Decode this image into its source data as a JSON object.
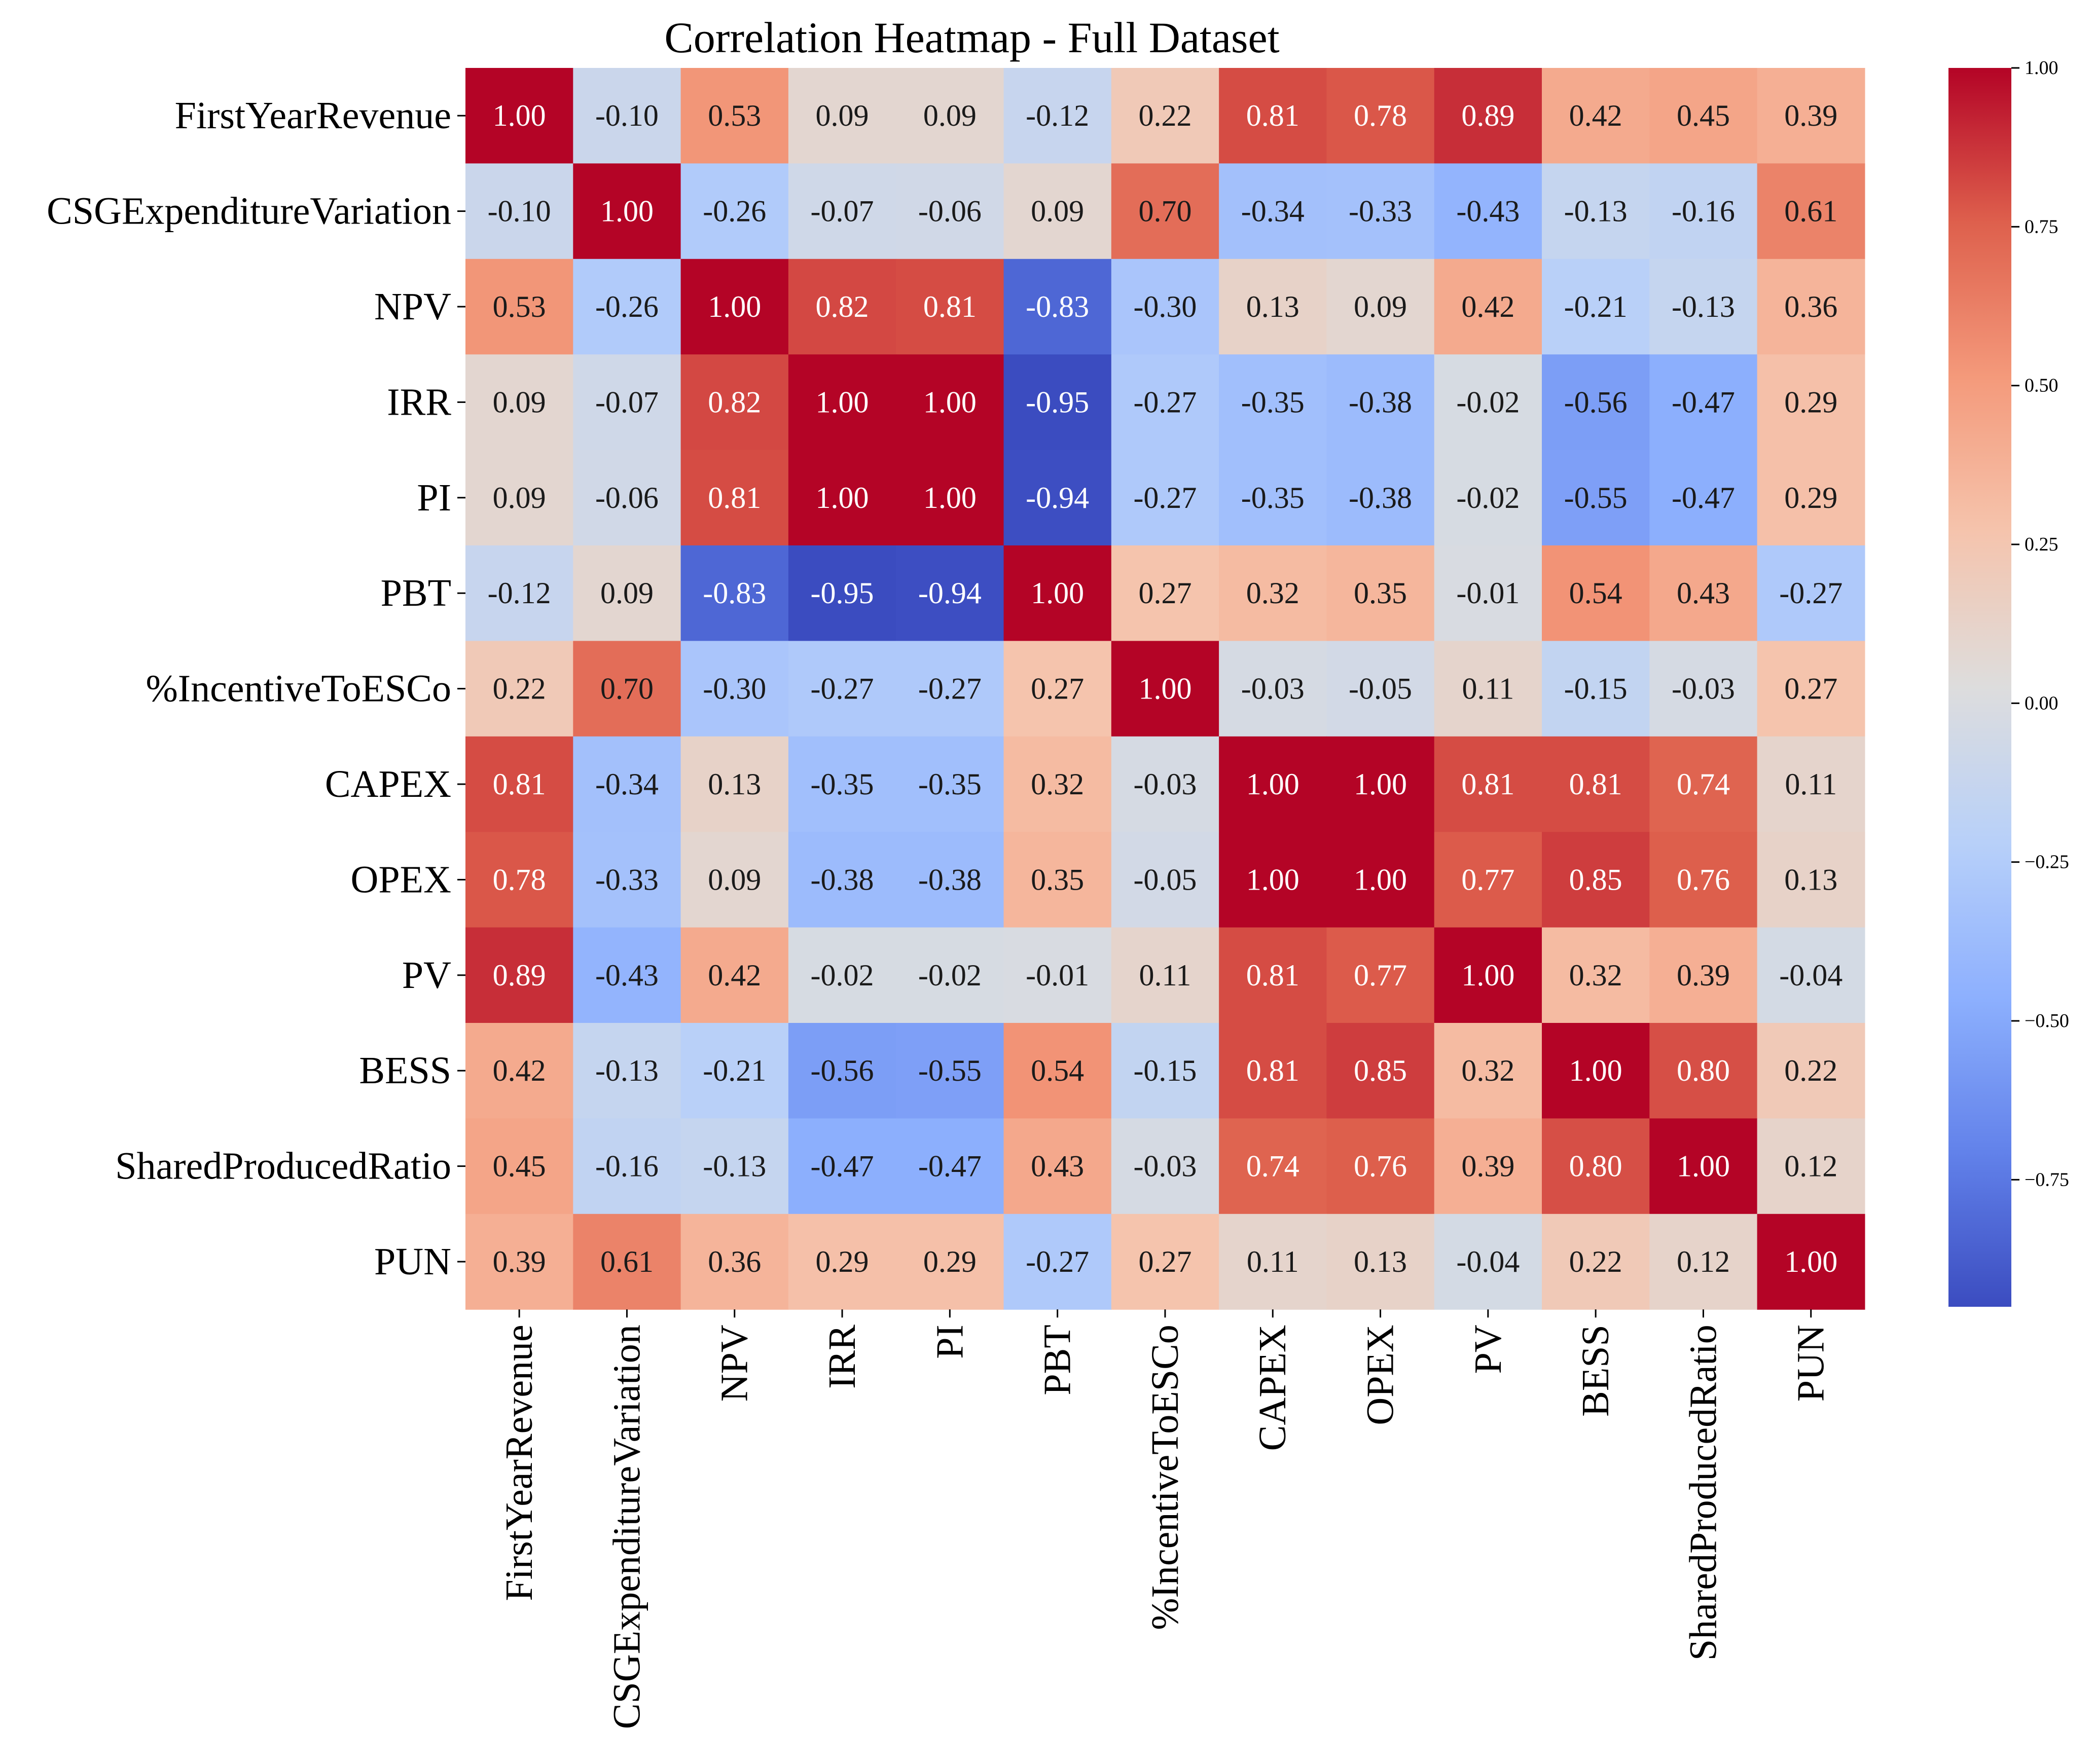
{
  "chart_data": {
    "type": "heatmap",
    "title": "Correlation Heatmap - Full Dataset",
    "xlabel": "",
    "ylabel": "",
    "colormap": "coolwarm",
    "value_range": [
      -0.95,
      1.0
    ],
    "variables": [
      "FirstYearRevenue",
      "CSGExpenditureVariation",
      "NPV",
      "IRR",
      "PI",
      "PBT",
      "%IncentiveToESCo",
      "CAPEX",
      "OPEX",
      "PV",
      "BESS",
      "SharedProducedRatio",
      "PUN"
    ],
    "matrix": [
      [
        1.0,
        -0.1,
        0.53,
        0.09,
        0.09,
        -0.12,
        0.22,
        0.81,
        0.78,
        0.89,
        0.42,
        0.45,
        0.39
      ],
      [
        -0.1,
        1.0,
        -0.26,
        -0.07,
        -0.06,
        0.09,
        0.7,
        -0.34,
        -0.33,
        -0.43,
        -0.13,
        -0.16,
        0.61
      ],
      [
        0.53,
        -0.26,
        1.0,
        0.82,
        0.81,
        -0.83,
        -0.3,
        0.13,
        0.09,
        0.42,
        -0.21,
        -0.13,
        0.36
      ],
      [
        0.09,
        -0.07,
        0.82,
        1.0,
        1.0,
        -0.95,
        -0.27,
        -0.35,
        -0.38,
        -0.02,
        -0.56,
        -0.47,
        0.29
      ],
      [
        0.09,
        -0.06,
        0.81,
        1.0,
        1.0,
        -0.94,
        -0.27,
        -0.35,
        -0.38,
        -0.02,
        -0.55,
        -0.47,
        0.29
      ],
      [
        -0.12,
        0.09,
        -0.83,
        -0.95,
        -0.94,
        1.0,
        0.27,
        0.32,
        0.35,
        -0.01,
        0.54,
        0.43,
        -0.27
      ],
      [
        0.22,
        0.7,
        -0.3,
        -0.27,
        -0.27,
        0.27,
        1.0,
        -0.03,
        -0.05,
        0.11,
        -0.15,
        -0.03,
        0.27
      ],
      [
        0.81,
        -0.34,
        0.13,
        -0.35,
        -0.35,
        0.32,
        -0.03,
        1.0,
        1.0,
        0.81,
        0.81,
        0.74,
        0.11
      ],
      [
        0.78,
        -0.33,
        0.09,
        -0.38,
        -0.38,
        0.35,
        -0.05,
        1.0,
        1.0,
        0.77,
        0.85,
        0.76,
        0.13
      ],
      [
        0.89,
        -0.43,
        0.42,
        -0.02,
        -0.02,
        -0.01,
        0.11,
        0.81,
        0.77,
        1.0,
        0.32,
        0.39,
        -0.04
      ],
      [
        0.42,
        -0.13,
        -0.21,
        -0.56,
        -0.55,
        0.54,
        -0.15,
        0.81,
        0.85,
        0.32,
        1.0,
        0.8,
        0.22
      ],
      [
        0.45,
        -0.16,
        -0.13,
        -0.47,
        -0.47,
        0.43,
        -0.03,
        0.74,
        0.76,
        0.39,
        0.8,
        1.0,
        0.12
      ],
      [
        0.39,
        0.61,
        0.36,
        0.29,
        0.29,
        -0.27,
        0.27,
        0.11,
        0.13,
        -0.04,
        0.22,
        0.12,
        1.0
      ]
    ],
    "colorbar": {
      "ticks": [
        1.0,
        0.75,
        0.5,
        0.25,
        0.0,
        -0.25,
        -0.5,
        -0.75
      ],
      "tick_labels": [
        "1.00",
        "0.75",
        "0.50",
        "0.25",
        "0.00",
        "−0.25",
        "−0.50",
        "−0.75"
      ]
    }
  }
}
